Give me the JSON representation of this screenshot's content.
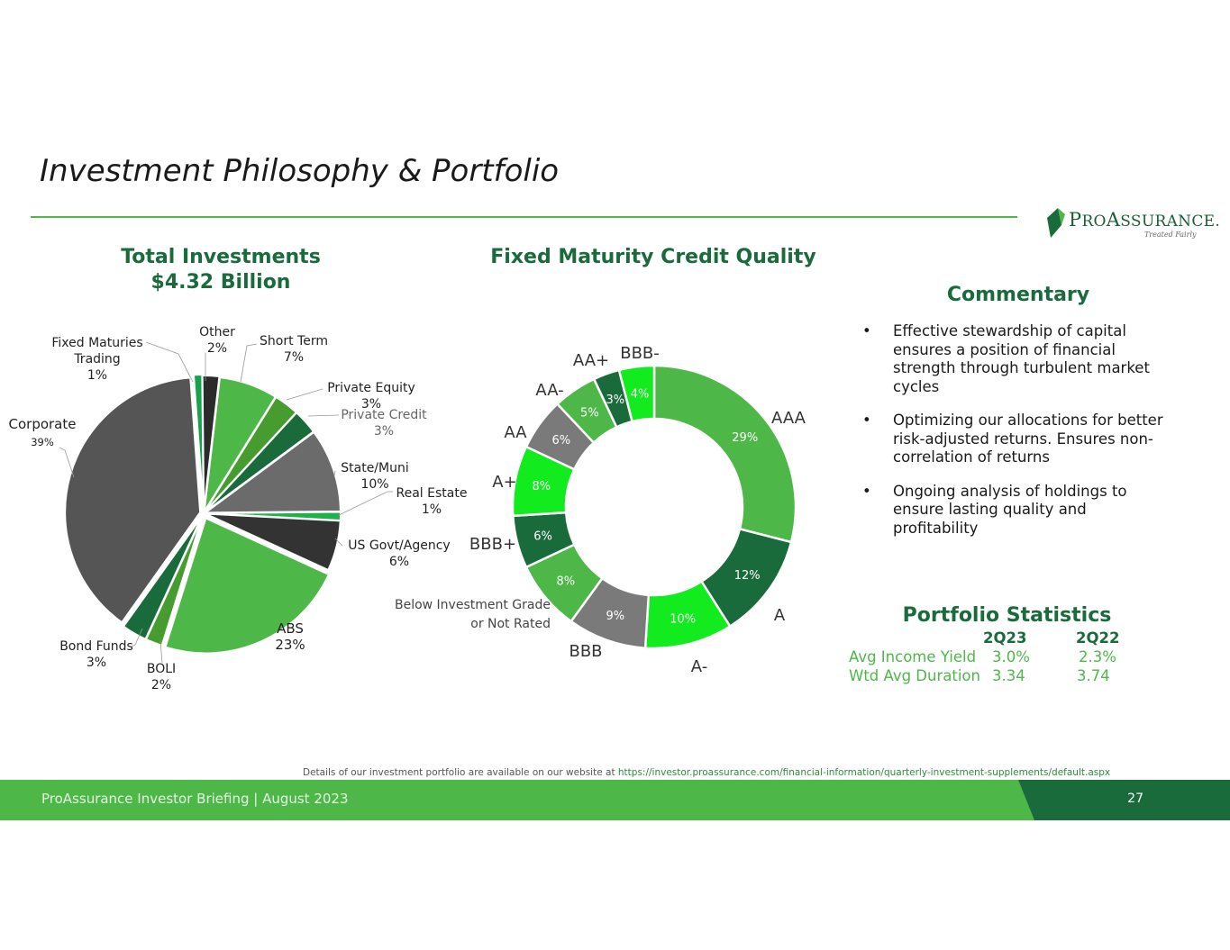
{
  "slide": {
    "title": "Investment Philosophy & Portfolio",
    "logo": {
      "name_initial": "P",
      "name_rest": "RO",
      "name_initial2": "A",
      "name_rest2": "SSURANCE",
      "mark": ".",
      "tagline": "Treated Fairly"
    }
  },
  "pie": {
    "title_line1": "Total Investments",
    "title_line2": "$4.32 Billion"
  },
  "donut": {
    "title": "Fixed Maturity Credit Quality"
  },
  "chart_data": [
    {
      "type": "pie",
      "title": "Total Investments $4.32 Billion",
      "unit": "%",
      "slices": [
        {
          "label": "Other",
          "value": 2,
          "value_label": "2%",
          "color": "#2b2b2b"
        },
        {
          "label": "Short Term",
          "value": 7,
          "value_label": "7%",
          "color": "#4db848"
        },
        {
          "label": "Private Equity",
          "value": 3,
          "value_label": "3%",
          "color": "#469c2e"
        },
        {
          "label": "Private Credit",
          "value": 3,
          "value_label": "3%",
          "color": "#1a6b3c"
        },
        {
          "label": "State/Muni",
          "value": 10,
          "value_label": "10%",
          "color": "#6b6b6b"
        },
        {
          "label": "Real Estate",
          "value": 1,
          "value_label": "1%",
          "color": "#1fb14a"
        },
        {
          "label": "US Govt/Agency",
          "value": 6,
          "value_label": "6%",
          "color": "#333333"
        },
        {
          "label": "ABS",
          "value": 23,
          "value_label": "23%",
          "color": "#4db848"
        },
        {
          "label": "BOLI",
          "value": 2,
          "value_label": "2%",
          "color": "#469c2e"
        },
        {
          "label": "Bond Funds",
          "value": 3,
          "value_label": "3%",
          "color": "#1a6b3c"
        },
        {
          "label": "Corporate",
          "value": 39,
          "value_label": "39%",
          "color": "#555555"
        },
        {
          "label": "Fixed Maturies Trading",
          "value": 1,
          "value_label": "1%",
          "color": "#17a34a"
        }
      ]
    },
    {
      "type": "pie",
      "variant": "donut",
      "title": "Fixed Maturity Credit Quality",
      "unit": "%",
      "slices": [
        {
          "label": "AAA",
          "value": 29,
          "value_label": "29%",
          "color": "#4db848"
        },
        {
          "label": "A",
          "value": 12,
          "value_label": "12%",
          "color": "#1a6b3c"
        },
        {
          "label": "A-",
          "value": 10,
          "value_label": "10%",
          "color": "#12ec1f"
        },
        {
          "label": "BBB",
          "value": 9,
          "value_label": "9%",
          "color": "#7a7a7a"
        },
        {
          "label": "Below Investment Grade or Not Rated",
          "value": 8,
          "value_label": "8%",
          "color": "#4db848"
        },
        {
          "label": "BBB+",
          "value": 6,
          "value_label": "6%",
          "color": "#1a6b3c"
        },
        {
          "label": "A+",
          "value": 8,
          "value_label": "8%",
          "color": "#12ec1f"
        },
        {
          "label": "AA",
          "value": 6,
          "value_label": "6%",
          "color": "#7a7a7a"
        },
        {
          "label": "AA-",
          "value": 5,
          "value_label": "5%",
          "color": "#4db848"
        },
        {
          "label": "AA+",
          "value": 3,
          "value_label": "3%",
          "color": "#1a6b3c"
        },
        {
          "label": "BBB-",
          "value": 4,
          "value_label": "4%",
          "color": "#12ec1f"
        }
      ]
    }
  ],
  "commentary": {
    "title": "Commentary",
    "bullets": [
      "Effective stewardship of capital ensures a position of financial strength through turbulent market cycles",
      "Optimizing our allocations for better risk-adjusted returns. Ensures non-correlation of returns",
      "Ongoing analysis of holdings to ensure lasting quality and profitability"
    ]
  },
  "stats": {
    "title": "Portfolio Statistics",
    "col1": "2Q23",
    "col2": "2Q22",
    "rows": [
      {
        "label": "Avg Income Yield",
        "v1": "3.0%",
        "v2": "2.3%"
      },
      {
        "label": "Wtd Avg Duration",
        "v1": "3.34",
        "v2": "3.74"
      }
    ]
  },
  "note": {
    "text": "Details of our investment portfolio are available on our website at ",
    "link": "https://investor.proassurance.com/financial-information/quarterly-investment-supplements/default.aspx"
  },
  "footer": {
    "text": "ProAssurance Investor Briefing | August 2023",
    "page": "27"
  }
}
